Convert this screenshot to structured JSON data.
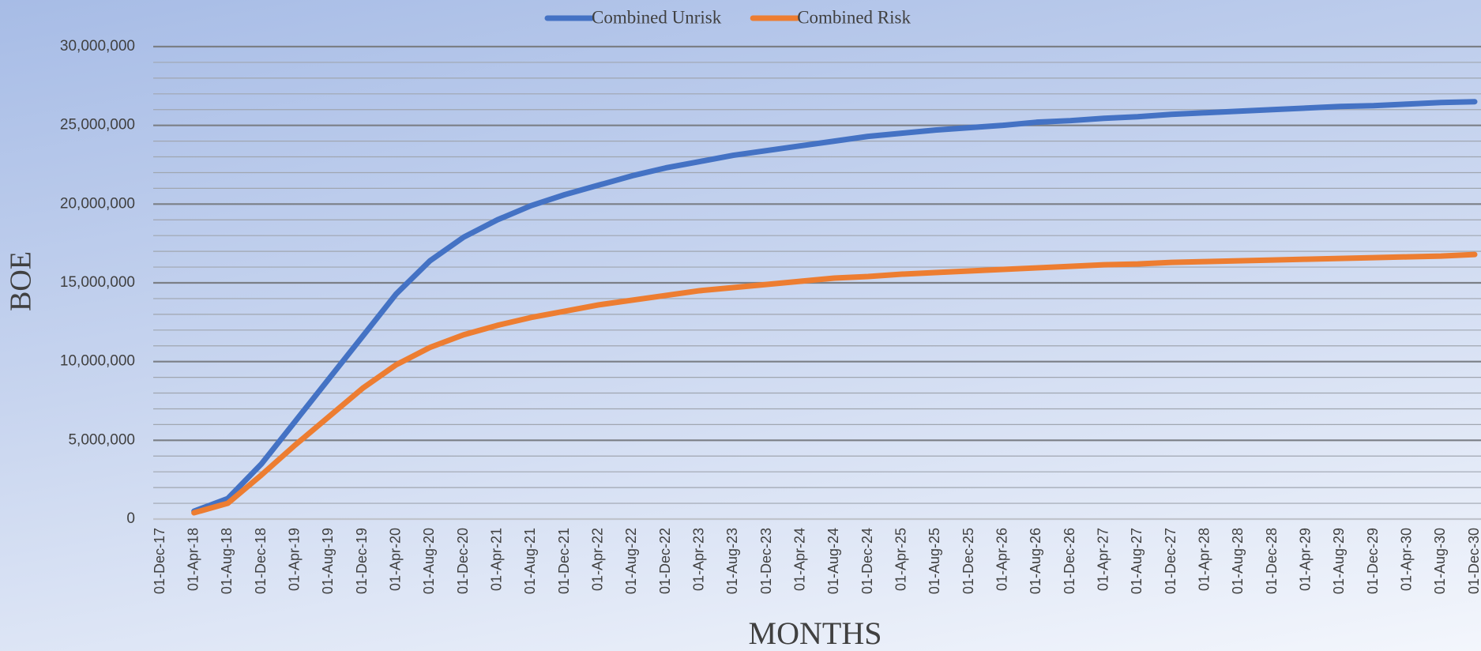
{
  "chart_data": {
    "type": "line",
    "x_label": "MONTHS",
    "y_label": "BOE",
    "categories": [
      "01-Dec-17",
      "01-Apr-18",
      "01-Aug-18",
      "01-Dec-18",
      "01-Apr-19",
      "01-Aug-19",
      "01-Dec-19",
      "01-Apr-20",
      "01-Aug-20",
      "01-Dec-20",
      "01-Apr-21",
      "01-Aug-21",
      "01-Dec-21",
      "01-Apr-22",
      "01-Aug-22",
      "01-Dec-22",
      "01-Apr-23",
      "01-Aug-23",
      "01-Dec-23",
      "01-Apr-24",
      "01-Aug-24",
      "01-Dec-24",
      "01-Apr-25",
      "01-Aug-25",
      "01-Dec-25",
      "01-Apr-26",
      "01-Aug-26",
      "01-Dec-26",
      "01-Apr-27",
      "01-Aug-27",
      "01-Dec-27",
      "01-Apr-28",
      "01-Aug-28",
      "01-Dec-28",
      "01-Apr-29",
      "01-Aug-29",
      "01-Dec-29",
      "01-Apr-30",
      "01-Aug-30",
      "01-Dec-30"
    ],
    "series": [
      {
        "name": "Combined Unrisk",
        "color": "#4472c4",
        "values": [
          null,
          500000,
          1300000,
          3500000,
          6200000,
          8900000,
          11600000,
          14300000,
          16400000,
          17900000,
          19000000,
          19900000,
          20600000,
          21200000,
          21800000,
          22300000,
          22700000,
          23100000,
          23400000,
          23700000,
          24000000,
          24300000,
          24500000,
          24700000,
          24850000,
          25000000,
          25200000,
          25300000,
          25450000,
          25550000,
          25700000,
          25800000,
          25900000,
          26000000,
          26100000,
          26200000,
          26250000,
          26350000,
          26450000,
          26500000
        ]
      },
      {
        "name": "Combined Risk",
        "color": "#ed7d31",
        "values": [
          null,
          400000,
          1000000,
          2800000,
          4700000,
          6500000,
          8300000,
          9800000,
          10900000,
          11700000,
          12300000,
          12800000,
          13200000,
          13600000,
          13900000,
          14200000,
          14500000,
          14700000,
          14900000,
          15100000,
          15300000,
          15400000,
          15550000,
          15650000,
          15750000,
          15850000,
          15950000,
          16050000,
          16150000,
          16200000,
          16300000,
          16350000,
          16400000,
          16450000,
          16500000,
          16550000,
          16600000,
          16650000,
          16700000,
          16800000
        ]
      }
    ],
    "ylim": [
      0,
      30000000
    ],
    "yticks": [
      0,
      {
        "value": 5000000,
        "label": "5,000,000"
      },
      {
        "value": 10000000,
        "label": "10,000,000"
      },
      {
        "value": 15000000,
        "label": "15,000,000"
      },
      {
        "value": 20000000,
        "label": "20,000,000"
      },
      {
        "value": 25000000,
        "label": "25,000,000"
      },
      {
        "value": 30000000,
        "label": "30,000,000"
      }
    ],
    "grid": true,
    "minor_grid": true,
    "legend": "top"
  }
}
